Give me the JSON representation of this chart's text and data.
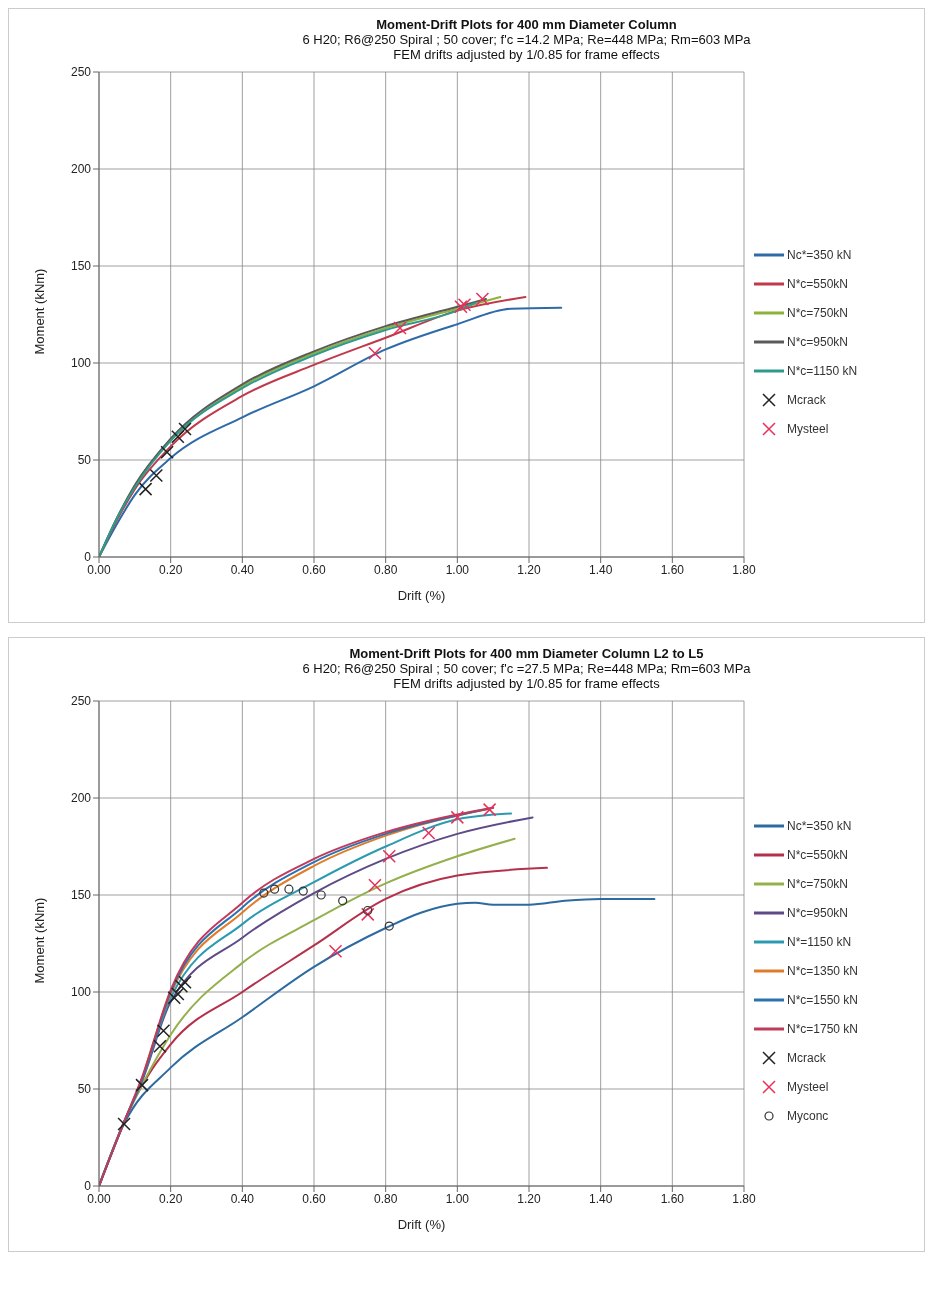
{
  "chart_data": [
    {
      "type": "line",
      "title": "Moment-Drift Plots for 400 mm Diameter Column",
      "subtitle": "6 H20; R6@250 Spiral ;  50 cover; f'c =14.2 MPa;  Re=448 MPa;  Rm=603 MPa\nFEM drifts adjusted by 1/0.85 for frame effects",
      "xlabel": "Drift (%)",
      "ylabel": "Moment  (kNm)",
      "xlim": [
        0,
        1.8
      ],
      "ylim": [
        0,
        250
      ],
      "xticks": [
        {
          "value": 0,
          "label": "0.00"
        },
        {
          "value": 0.2,
          "label": "0.20"
        },
        {
          "value": 0.4,
          "label": "0.40"
        },
        {
          "value": 0.6,
          "label": "0.60"
        },
        {
          "value": 0.8,
          "label": "0.80"
        },
        {
          "value": 1,
          "label": "1.00"
        },
        {
          "value": 1.2,
          "label": "1.20"
        },
        {
          "value": 1.4,
          "label": "1.40"
        },
        {
          "value": 1.6,
          "label": "1.60"
        },
        {
          "value": 1.8,
          "label": "1.80"
        }
      ],
      "yticks": [
        0,
        50,
        100,
        150,
        200,
        250
      ],
      "grid": true,
      "legend": "right",
      "marker": "none",
      "line_style": "solid",
      "series": [
        {
          "name": "Nc*=350 kN",
          "color": "#2f6aa8",
          "x": [
            0,
            0.05,
            0.1,
            0.2,
            0.4,
            0.6,
            0.8,
            1.0,
            1.15,
            1.29
          ],
          "values": [
            0,
            17,
            32,
            51,
            72,
            88,
            107,
            120,
            128,
            128.5
          ]
        },
        {
          "name": "N*c=550kN",
          "color": "#c0394b",
          "x": [
            0,
            0.05,
            0.1,
            0.2,
            0.4,
            0.6,
            0.8,
            1.0,
            1.19
          ],
          "values": [
            0,
            19,
            35,
            57,
            83,
            99,
            113,
            127,
            134
          ]
        },
        {
          "name": "N*c=750kN",
          "color": "#8db33a",
          "x": [
            0,
            0.05,
            0.1,
            0.2,
            0.4,
            0.6,
            0.8,
            1.0,
            1.12
          ],
          "values": [
            0,
            20,
            37,
            60,
            88,
            105,
            118,
            128,
            134
          ]
        },
        {
          "name": "N*c=950kN",
          "color": "#5a5a5a",
          "x": [
            0,
            0.05,
            0.1,
            0.2,
            0.4,
            0.6,
            0.8,
            1.0,
            1.08
          ],
          "values": [
            0,
            20,
            37,
            61,
            89,
            106,
            119,
            129,
            133
          ]
        },
        {
          "name": "N*c=1150 kN",
          "color": "#2e9a8e",
          "x": [
            0,
            0.05,
            0.1,
            0.2,
            0.4,
            0.6,
            0.8,
            1.0,
            1.05
          ],
          "values": [
            0,
            20,
            36,
            60,
            87,
            104,
            117,
            127,
            131
          ]
        },
        {
          "name": "Mcrack",
          "type": "scatter",
          "marker": "cross",
          "color": "#222222",
          "x": [
            0.13,
            0.16,
            0.19,
            0.22,
            0.24
          ],
          "values": [
            35,
            42,
            54,
            62,
            66
          ]
        },
        {
          "name": "Mysteel",
          "type": "scatter",
          "marker": "cross",
          "color": "#e8305a",
          "x": [
            0.77,
            0.84,
            1.01,
            1.02,
            1.07
          ],
          "values": [
            105,
            118,
            129,
            130,
            133
          ]
        }
      ]
    },
    {
      "type": "line",
      "title": "Moment-Drift Plots for 400 mm Diameter Column L2 to L5",
      "subtitle": "6 H20; R6@250 Spiral ;  50 cover; f'c =27.5 MPa;  Re=448 MPa;  Rm=603 MPa\nFEM drifts adjusted by 1/0.85 for frame effects",
      "xlabel": "Drift (%)",
      "ylabel": "Moment  (kNm)",
      "xlim": [
        0,
        1.8
      ],
      "ylim": [
        0,
        250
      ],
      "xticks": [
        {
          "value": 0,
          "label": "0.00"
        },
        {
          "value": 0.2,
          "label": "0.20"
        },
        {
          "value": 0.4,
          "label": "0.40"
        },
        {
          "value": 0.6,
          "label": "0.60"
        },
        {
          "value": 0.8,
          "label": "0.80"
        },
        {
          "value": 1,
          "label": "1.00"
        },
        {
          "value": 1.2,
          "label": "1.20"
        },
        {
          "value": 1.4,
          "label": "1.40"
        },
        {
          "value": 1.6,
          "label": "1.60"
        },
        {
          "value": 1.8,
          "label": "1.80"
        }
      ],
      "yticks": [
        0,
        50,
        100,
        150,
        200,
        250
      ],
      "grid": true,
      "legend": "right",
      "marker": "none",
      "line_style": "solid",
      "series": [
        {
          "name": "Nc*=350 kN",
          "color": "#2d6aa0",
          "x": [
            0,
            0.07,
            0.2,
            0.4,
            0.6,
            0.8,
            0.9,
            1.0,
            1.05,
            1.1,
            1.2,
            1.3,
            1.4,
            1.55
          ],
          "values": [
            0,
            32,
            61,
            87,
            113,
            133,
            141,
            145.5,
            146,
            145,
            145,
            147,
            148,
            148
          ]
        },
        {
          "name": "N*c=550kN",
          "color": "#b5304a",
          "x": [
            0,
            0.07,
            0.1,
            0.2,
            0.4,
            0.6,
            0.8,
            1.0,
            1.25
          ],
          "values": [
            0,
            33,
            45,
            73,
            100,
            124,
            148,
            160,
            164
          ]
        },
        {
          "name": "N*c=750kN",
          "color": "#93b04a",
          "x": [
            0,
            0.07,
            0.12,
            0.2,
            0.4,
            0.6,
            0.8,
            1.0,
            1.16
          ],
          "values": [
            0,
            33,
            52,
            78,
            115,
            137,
            156,
            170,
            179
          ]
        },
        {
          "name": "N*c=950kN",
          "color": "#5e4a86",
          "x": [
            0,
            0.07,
            0.12,
            0.2,
            0.4,
            0.6,
            0.8,
            1.0,
            1.21
          ],
          "values": [
            0,
            33,
            54,
            95,
            128,
            151,
            168.6,
            181.5,
            190
          ]
        },
        {
          "name": "N*=1150 kN",
          "color": "#2b9ab0",
          "x": [
            0,
            0.07,
            0.12,
            0.2,
            0.4,
            0.6,
            0.8,
            1.0,
            1.15
          ],
          "values": [
            0,
            33,
            55,
            97,
            135,
            156.6,
            175,
            189,
            192
          ]
        },
        {
          "name": "N*c=1350 kN",
          "color": "#e07b2a",
          "x": [
            0.12,
            0.2,
            0.4,
            0.6,
            0.8,
            1.0,
            1.08
          ],
          "values": [
            55,
            99,
            141,
            165,
            180.6,
            191,
            194
          ]
        },
        {
          "name": "N*c=1550 kN",
          "color": "#2d72b0",
          "x": [
            0,
            0.07,
            0.12,
            0.2,
            0.4,
            0.6,
            0.8,
            1.0,
            1.1
          ],
          "values": [
            0,
            33,
            55,
            100,
            143.6,
            167,
            181.5,
            191,
            195
          ]
        },
        {
          "name": "N*c=1750 kN",
          "color": "#c03a5a",
          "x": [
            0,
            0.07,
            0.12,
            0.2,
            0.4,
            0.6,
            0.8,
            1.0,
            1.1
          ],
          "values": [
            0,
            33,
            56,
            101,
            146,
            168.6,
            182.4,
            191.5,
            195
          ]
        },
        {
          "name": "Mcrack",
          "type": "scatter",
          "marker": "cross",
          "color": "#222222",
          "x": [
            0.07,
            0.12,
            0.17,
            0.18,
            0.21,
            0.22,
            0.23,
            0.24
          ],
          "values": [
            32,
            52,
            72,
            80,
            97,
            99,
            103,
            105
          ]
        },
        {
          "name": "Mysteel",
          "type": "scatter",
          "marker": "cross",
          "color": "#e8305a",
          "x": [
            0.66,
            0.75,
            0.77,
            0.81,
            0.92,
            1.0,
            1.09
          ],
          "values": [
            121,
            140,
            155,
            170,
            182,
            190,
            194
          ]
        },
        {
          "name": "Myconc",
          "type": "scatter",
          "marker": "circle",
          "color": "#333333",
          "x": [
            0.46,
            0.49,
            0.53,
            0.57,
            0.62,
            0.68,
            0.75,
            0.81
          ],
          "values": [
            151,
            153,
            153,
            152,
            150,
            147,
            142,
            134
          ]
        }
      ]
    }
  ]
}
